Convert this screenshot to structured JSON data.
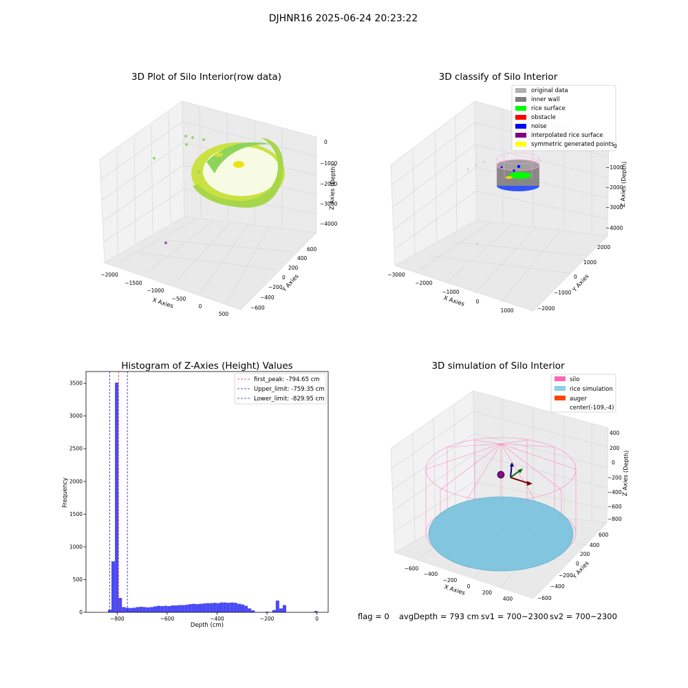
{
  "suptitle": "DJHNR16 2025-06-24 20:23:22",
  "status": {
    "flag": "flag = 0",
    "avg_depth": "avgDepth = 793 cm",
    "sv1": "sv1 = 700~2300",
    "sv2": "sv2 = 700~2300"
  },
  "colors": {
    "hist_bar": "#4b4bf5",
    "first_peak": "#ff2020",
    "limits": "#1a1acc",
    "silo": "#ff69b4",
    "rice_sim": "#87ceeb",
    "auger": "#ff4500",
    "original": "#b0b0b0",
    "inner_wall": "#808080",
    "rice_surface": "#00ff00",
    "obstacle": "#ff0000",
    "noise": "#0000ff",
    "interp": "#800080",
    "symmetric": "#ffff00",
    "raw_points_a": "#7ed957",
    "raw_points_b": "#e5e500"
  },
  "chart_data": [
    {
      "type": "scatter",
      "projection": "3d",
      "title": "3D Plot of Silo Interior(row data)",
      "xlabel": "X Axies",
      "ylabel": "Y Axies",
      "zlabel": "Z Axies (Depth)",
      "x_ticks": [
        "−2000",
        "−1500",
        "−1000",
        "−500",
        "0",
        "500"
      ],
      "y_ticks": [
        "−600",
        "−400",
        "−200",
        "0",
        "200",
        "400",
        "600"
      ],
      "z_ticks": [
        "0",
        "−1000",
        "−2000",
        "−3000",
        "−4000"
      ],
      "xlim": [
        -2100,
        600
      ],
      "ylim": [
        -650,
        650
      ],
      "zlim": [
        -4300,
        100
      ],
      "grid": true
    },
    {
      "type": "scatter",
      "projection": "3d",
      "title": "3D classify of Silo Interior",
      "xlabel": "X Axies",
      "ylabel": "Y Axies",
      "zlabel": "Z Axies (Depth)",
      "x_ticks": [
        "−3000",
        "−2000",
        "−1000",
        "0",
        "1000"
      ],
      "y_ticks": [
        "−2000",
        "−1000",
        "0",
        "1000",
        "2000"
      ],
      "z_ticks": [
        "0",
        "−1000",
        "−2000",
        "−3000",
        "−4000"
      ],
      "legend": [
        "original data",
        "inner wall",
        "rice surface",
        "obstacle",
        "noise",
        "interpolated rice surface",
        "symmetric generated points"
      ],
      "legend_loc": "upper right",
      "grid": true
    },
    {
      "type": "bar",
      "title": "Histogram of Z-Axies (Height) Values",
      "xlabel": "Depth (cm)",
      "ylabel": "Frequency",
      "xlim": [
        -925,
        45
      ],
      "ylim": [
        0,
        3680
      ],
      "x_ticks": [
        "−800",
        "−600",
        "−400",
        "−200",
        "0"
      ],
      "y_ticks": [
        "0",
        "500",
        "1000",
        "1500",
        "2000",
        "2500",
        "3000",
        "3500"
      ],
      "bin_width": 14,
      "bin_starts": [
        -837,
        -823,
        -809,
        -795,
        -781,
        -767,
        -753,
        -739,
        -725,
        -711,
        -697,
        -683,
        -669,
        -655,
        -641,
        -627,
        -613,
        -599,
        -585,
        -571,
        -557,
        -543,
        -529,
        -515,
        -501,
        -487,
        -473,
        -459,
        -445,
        -431,
        -417,
        -403,
        -389,
        -375,
        -361,
        -347,
        -333,
        -319,
        -305,
        -291,
        -277,
        -263,
        -249,
        -235,
        -221,
        -207,
        -193,
        -179,
        -165,
        -151,
        -137,
        -123,
        -109,
        -95,
        -81,
        -67,
        -53,
        -39,
        -25,
        -11,
        3
      ],
      "values": [
        40,
        780,
        3510,
        220,
        80,
        70,
        65,
        70,
        80,
        85,
        80,
        75,
        80,
        90,
        100,
        95,
        100,
        95,
        105,
        105,
        110,
        110,
        115,
        125,
        130,
        125,
        130,
        135,
        140,
        140,
        145,
        140,
        150,
        150,
        145,
        150,
        145,
        130,
        120,
        100,
        60,
        30,
        0,
        0,
        0,
        10,
        0,
        35,
        180,
        60,
        110,
        0,
        0,
        0,
        0,
        0,
        0,
        0,
        0,
        20,
        0
      ],
      "vlines": [
        {
          "label": "first_peak: -794.65 cm",
          "x": -794.65,
          "style": "dashed",
          "color": "#ff2020"
        },
        {
          "label": "Upper_limit: -759.35 cm",
          "x": -759.35,
          "style": "dashed",
          "color": "#1a1acc"
        },
        {
          "label": "Lower_limit: -829.95 cm",
          "x": -829.95,
          "style": "dashed",
          "color": "#1a1acc"
        }
      ],
      "legend_loc": "upper right",
      "grid": false
    },
    {
      "type": "scatter",
      "projection": "3d",
      "title": "3D simulation of Silo Interior",
      "xlabel": "X Axies",
      "ylabel": "Y Axies",
      "zlabel": "Z Axies (Depth)",
      "x_ticks": [
        "−600",
        "−400",
        "−200",
        "0",
        "200",
        "400"
      ],
      "y_ticks": [
        "−600",
        "−400",
        "−200",
        "0",
        "200",
        "400",
        "600"
      ],
      "z_ticks": [
        "400",
        "200",
        "0",
        "−200",
        "−400",
        "−600",
        "−800"
      ],
      "legend": [
        "silo",
        "rice simulation",
        "auger",
        "center(-109,-4)"
      ],
      "legend_loc": "upper right",
      "grid": true
    }
  ]
}
